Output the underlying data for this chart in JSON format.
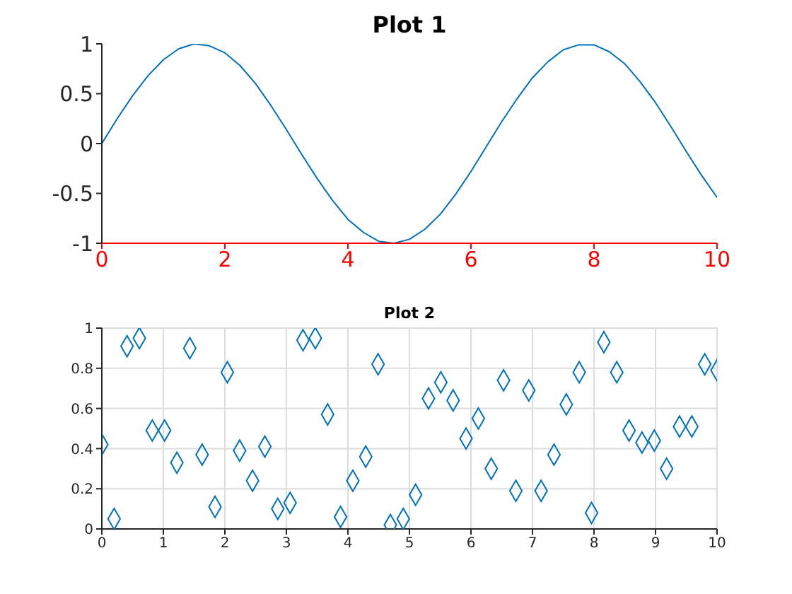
{
  "chart_data": [
    {
      "type": "line",
      "title": "Plot 1",
      "color": "#0072bd",
      "marker": "none",
      "x": [
        0,
        0.25,
        0.5,
        0.75,
        1,
        1.25,
        1.5,
        1.75,
        2,
        2.25,
        2.5,
        2.75,
        3,
        3.25,
        3.5,
        3.75,
        4,
        4.25,
        4.5,
        4.75,
        5,
        5.25,
        5.5,
        5.75,
        6,
        6.25,
        6.5,
        6.75,
        7,
        7.25,
        7.5,
        7.75,
        8,
        8.25,
        8.5,
        8.75,
        9,
        9.25,
        9.5,
        9.75,
        10
      ],
      "values": [
        0,
        0.25,
        0.48,
        0.68,
        0.84,
        0.95,
        1.0,
        0.98,
        0.91,
        0.78,
        0.6,
        0.38,
        0.14,
        -0.11,
        -0.35,
        -0.57,
        -0.76,
        -0.89,
        -0.98,
        -1.0,
        -0.96,
        -0.86,
        -0.71,
        -0.51,
        -0.28,
        -0.03,
        0.22,
        0.45,
        0.66,
        0.82,
        0.94,
        0.99,
        0.99,
        0.92,
        0.8,
        0.62,
        0.41,
        0.17,
        -0.08,
        -0.32,
        -0.54
      ],
      "xlim": [
        0,
        10
      ],
      "ylim": [
        -1,
        1
      ],
      "xticks": [
        0,
        2,
        4,
        6,
        8,
        10
      ],
      "yticks": [
        -1,
        -0.5,
        0,
        0.5,
        1
      ]
    },
    {
      "type": "scatter",
      "title": "Plot 2",
      "color": "#0072bd",
      "marker": "diamond",
      "grid": true,
      "x": [
        0,
        0.2,
        0.41,
        0.61,
        0.82,
        1.02,
        1.22,
        1.43,
        1.63,
        1.84,
        2.04,
        2.24,
        2.45,
        2.65,
        2.86,
        3.06,
        3.27,
        3.47,
        3.67,
        3.88,
        4.08,
        4.29,
        4.49,
        4.69,
        4.9,
        5.1,
        5.31,
        5.51,
        5.71,
        5.92,
        6.12,
        6.33,
        6.53,
        6.73,
        6.94,
        7.14,
        7.35,
        7.55,
        7.76,
        7.96,
        8.16,
        8.37,
        8.57,
        8.78,
        8.98,
        9.18,
        9.39,
        9.59,
        9.8,
        10
      ],
      "values": [
        0.42,
        0.05,
        0.91,
        0.95,
        0.49,
        0.49,
        0.33,
        0.9,
        0.37,
        0.11,
        0.78,
        0.39,
        0.24,
        0.41,
        0.1,
        0.13,
        0.94,
        0.95,
        0.57,
        0.06,
        0.24,
        0.36,
        0.82,
        0.02,
        0.05,
        0.17,
        0.65,
        0.73,
        0.64,
        0.45,
        0.55,
        0.3,
        0.74,
        0.19,
        0.69,
        0.19,
        0.37,
        0.62,
        0.78,
        0.08,
        0.93,
        0.78,
        0.49,
        0.43,
        0.44,
        0.3,
        0.51,
        0.51,
        0.82,
        0.79
      ],
      "xlim": [
        0,
        10
      ],
      "ylim": [
        0,
        1
      ],
      "xticks": [
        0,
        1,
        2,
        3,
        4,
        5,
        6,
        7,
        8,
        9,
        10
      ],
      "yticks": [
        0,
        0.2,
        0.4,
        0.6,
        0.8,
        1
      ]
    }
  ]
}
